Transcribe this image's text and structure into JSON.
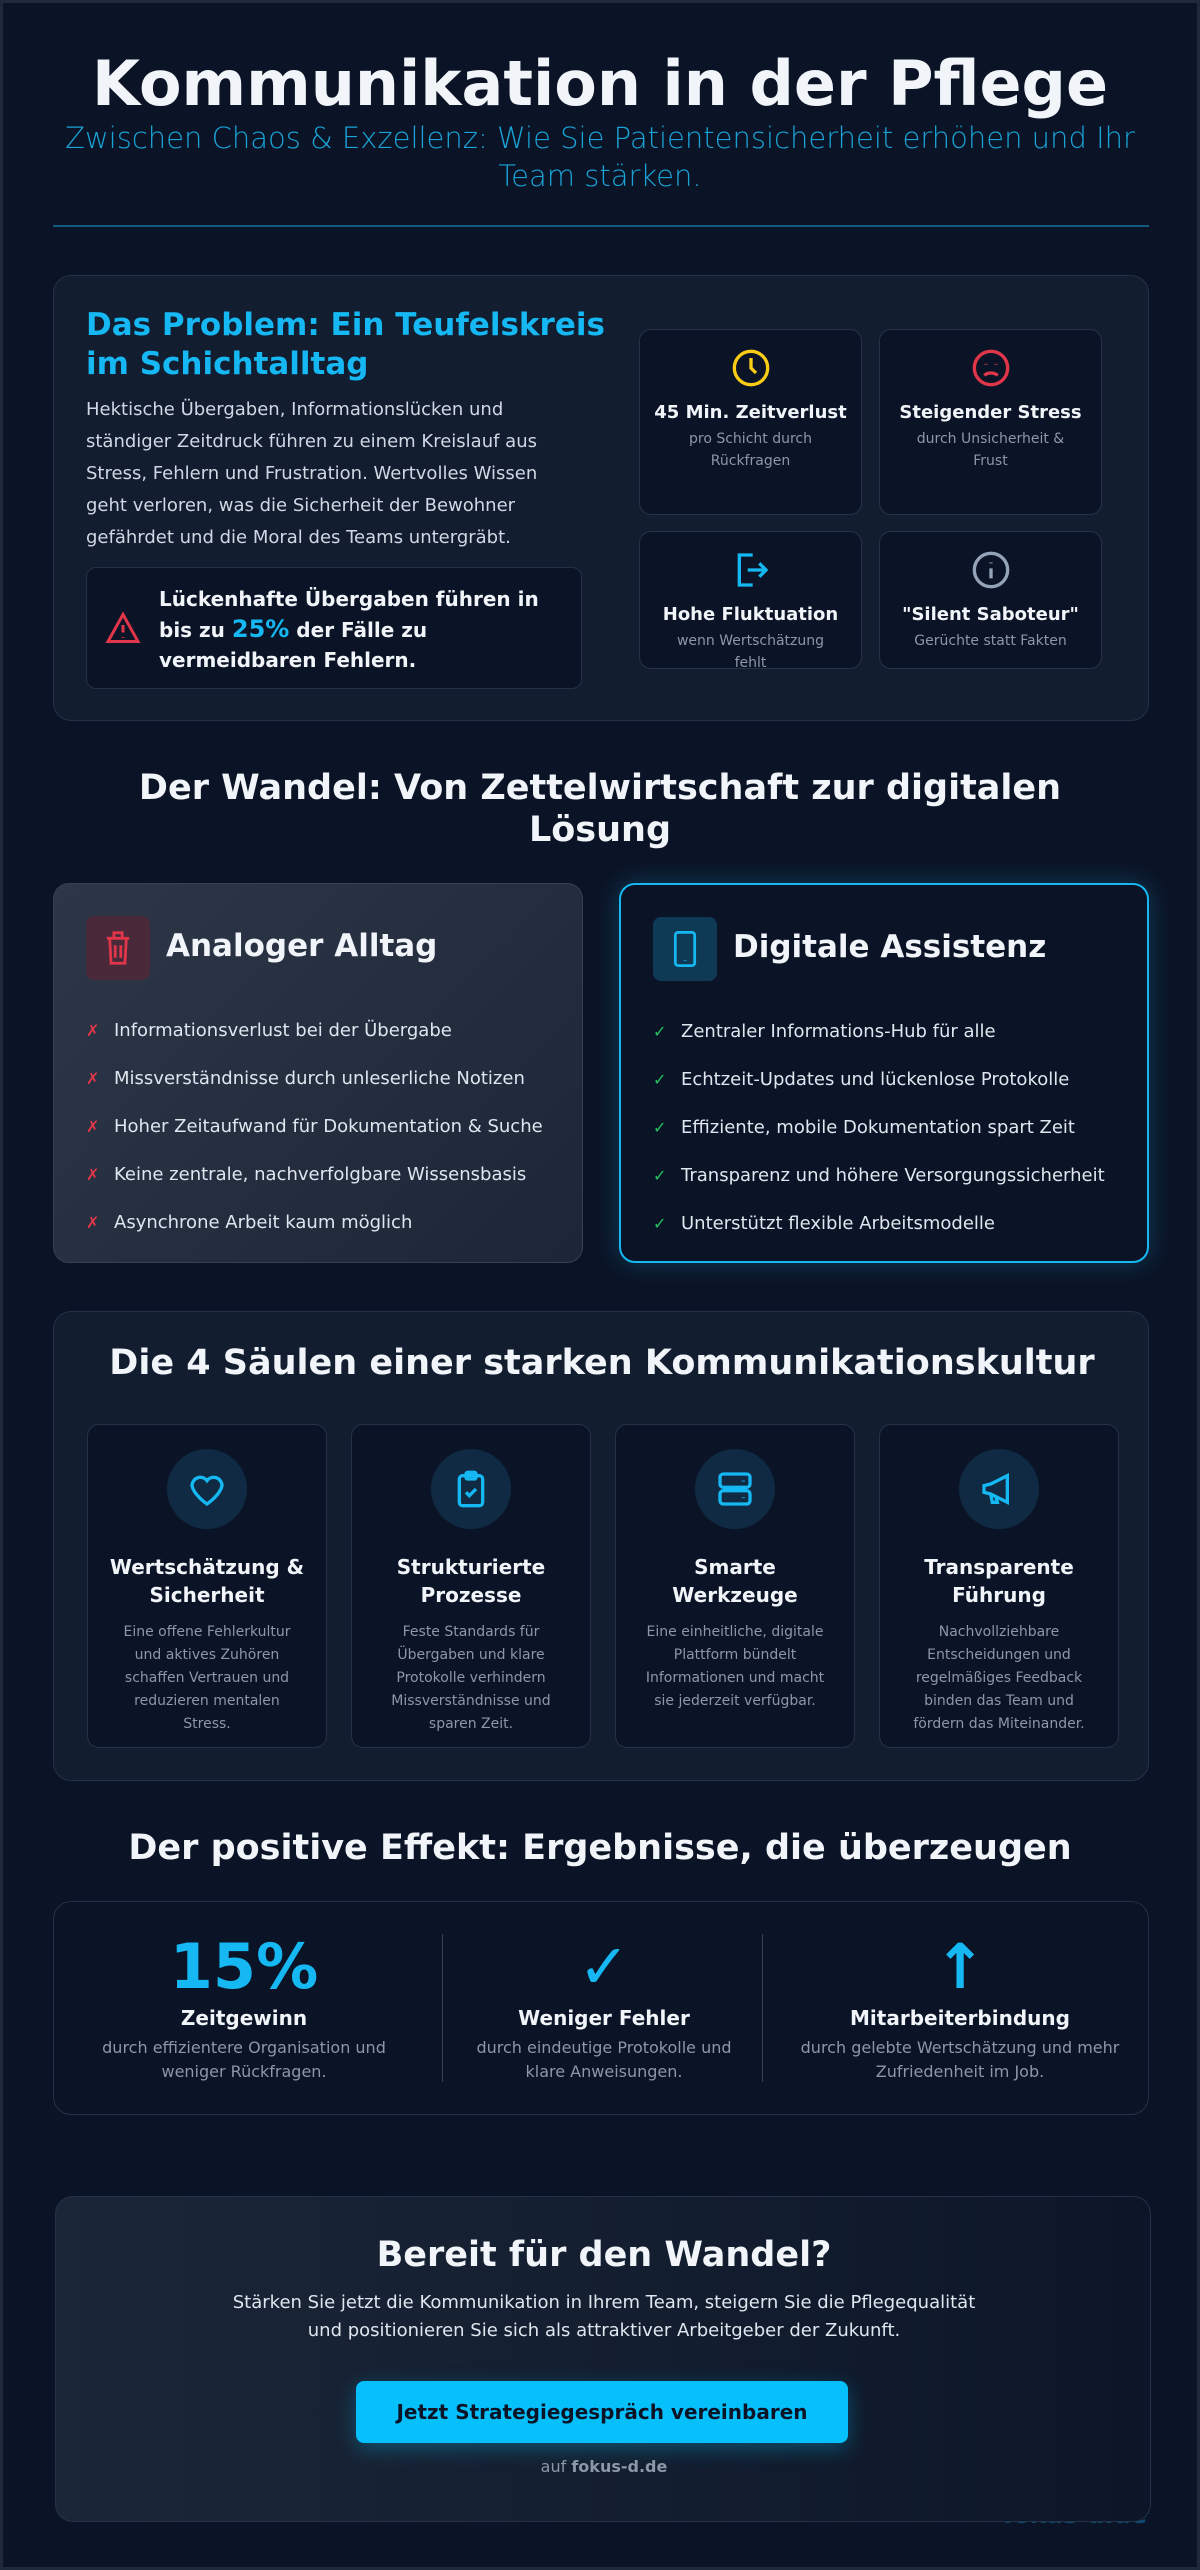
{
  "header": {
    "title": "Kommunikation in der Pflege",
    "subtitle": "Zwischen Chaos & Exzellenz: Wie Sie Patientensicherheit erhöhen und Ihr Team stärken."
  },
  "problem": {
    "heading": "Das Problem: Ein Teufelskreis im Schichtalltag",
    "text": "Hektische Übergaben, Informationslücken und ständiger Zeitdruck führen zu einem Kreislauf aus Stress, Fehlern und Frustration. Wertvolles Wissen geht verloren, was die Sicherheit der Bewohner gefährdet und die Moral des Teams untergräbt.",
    "alert": {
      "before": "Lückenhafte Übergaben führen in bis zu ",
      "highlight": "25%",
      "after": " der Fälle zu vermeidbaren Fehlern.",
      "icon": "warning-triangle-icon"
    },
    "stats": [
      {
        "title": "45 Min. Zeitverlust",
        "desc": "pro Schicht durch Rückfragen",
        "icon": "clock-icon",
        "color": "#facc15"
      },
      {
        "title": "Steigender Stress",
        "desc": "durch Unsicherheit & Frust",
        "icon": "sad-face-icon",
        "color": "#e1364a"
      },
      {
        "title": "Hohe Fluktuation",
        "desc": "wenn Wertschätzung fehlt",
        "icon": "logout-icon",
        "color": "#16b8f3"
      },
      {
        "title": "\"Silent Saboteur\"",
        "desc": "Gerüchte statt Fakten",
        "icon": "info-icon",
        "color": "#94a3b8"
      }
    ]
  },
  "change": {
    "heading": "Der Wandel: Von Zettelwirtschaft zur digitalen Lösung",
    "analog": {
      "title": "Analoger Alltag",
      "icon": "trash-icon",
      "mark": "✗",
      "items": [
        "Informationsverlust bei der Übergabe",
        "Missverständnisse durch unleserliche Notizen",
        "Hoher Zeitaufwand für Dokumentation & Suche",
        "Keine zentrale, nachverfolgbare Wissensbasis",
        "Asynchrone Arbeit kaum möglich"
      ]
    },
    "digital": {
      "title": "Digitale Assistenz",
      "icon": "smartphone-icon",
      "mark": "✓",
      "items": [
        "Zentraler Informations-Hub für alle",
        "Echtzeit-Updates und lückenlose Protokolle",
        "Effiziente, mobile Dokumentation spart Zeit",
        "Transparenz und höhere Versorgungssicherheit",
        "Unterstützt flexible Arbeitsmodelle"
      ]
    }
  },
  "pillars": {
    "heading": "Die 4 Säulen einer starken Kommunikationskultur",
    "items": [
      {
        "title": "Wertschätzung & Sicherheit",
        "desc": "Eine offene Fehlerkultur und aktives Zuhören schaffen Vertrauen und reduzieren mentalen Stress.",
        "icon": "heart-icon"
      },
      {
        "title": "Strukturierte Prozesse",
        "desc": "Feste Standards für Übergaben und klare Protokolle verhindern Missverständnisse und sparen Zeit.",
        "icon": "clipboard-check-icon"
      },
      {
        "title": "Smarte Werkzeuge",
        "desc": "Eine einheitliche, digitale Plattform bündelt Informationen und macht sie jederzeit verfügbar.",
        "icon": "server-icon"
      },
      {
        "title": "Transparente Führung",
        "desc": "Nachvollziehbare Entscheidungen und regelmäßiges Feedback binden das Team und fördern das Miteinander.",
        "icon": "megaphone-icon"
      }
    ]
  },
  "results": {
    "heading": "Der positive Effekt: Ergebnisse, die überzeugen",
    "items": [
      {
        "big": "15%",
        "title": "Zeitgewinn",
        "desc": "durch effizientere Organisation und weniger Rückfragen."
      },
      {
        "big": "✓",
        "title": "Weniger Fehler",
        "desc": "durch eindeutige Protokolle und klare Anweisungen."
      },
      {
        "big": "↑",
        "title": "Mitarbeiterbindung",
        "desc": "durch gelebte Wertschätzung und mehr Zufriedenheit im Job."
      }
    ]
  },
  "cta": {
    "heading": "Bereit für den Wandel?",
    "text": "Stärken Sie jetzt die Kommunikation in Ihrem Team, steigern Sie die Pflegequalität und positionieren Sie sich als attraktiver Arbeitgeber der Zukunft.",
    "button": "Jetzt Strategiegespräch vereinbaren",
    "site_prefix": "auf ",
    "site": "fokus-d.de"
  },
  "watermark": "fokus-d.de",
  "colors": {
    "accent": "#16b8f3",
    "background": "#0b1426",
    "danger": "#e1364a",
    "success": "#22c55e"
  }
}
